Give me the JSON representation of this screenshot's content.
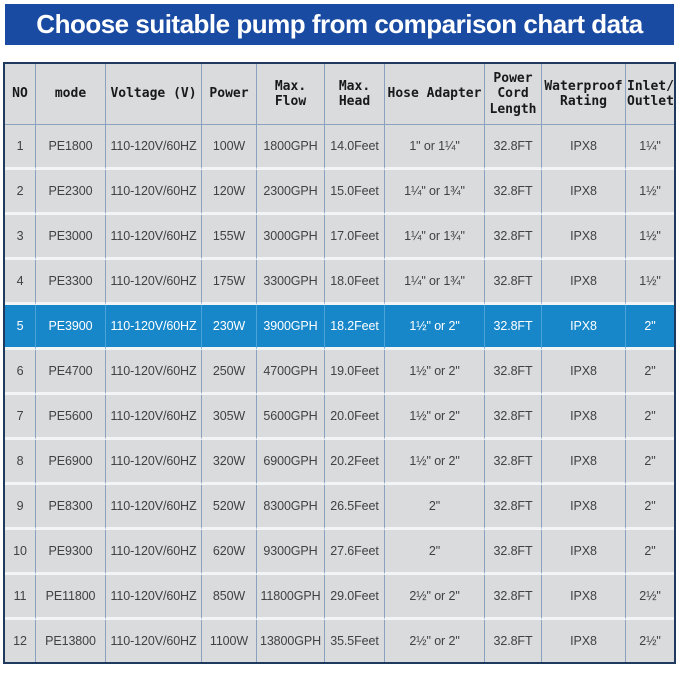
{
  "banner": {
    "title": "Choose suitable pump from comparison chart data"
  },
  "colors": {
    "banner_bg": "#1a4ba3",
    "highlight_row_bg": "#1787c9",
    "cell_bg": "#d9dbdc",
    "grid_line": "#8ba1c0",
    "outer_border": "#20395f",
    "banner_text": "#ffffff",
    "highlight_text": "#ffffff"
  },
  "chart_data": {
    "type": "table",
    "title": "Choose suitable pump from comparison chart data",
    "highlight_row_index": 4,
    "highlight_note": "Row 5 (PE3900) shown highlighted in blue",
    "columns": [
      {
        "key": "no",
        "label": "NO",
        "width": 31
      },
      {
        "key": "mode",
        "label": "mode",
        "width": 70
      },
      {
        "key": "voltage",
        "label": "Voltage (V)",
        "width": 96
      },
      {
        "key": "power",
        "label": "Power",
        "width": 55
      },
      {
        "key": "max-flow",
        "label": "Max.\nFlow",
        "width": 68
      },
      {
        "key": "max-head",
        "label": "Max.\nHead",
        "width": 60
      },
      {
        "key": "hose-adapter",
        "label": "Hose Adapter",
        "width": 100
      },
      {
        "key": "cord-length",
        "label": "Power\nCord\nLength",
        "width": 57
      },
      {
        "key": "waterproof",
        "label": "Waterproof\nRating",
        "width": 84
      },
      {
        "key": "inlet-outlet",
        "label": "Inlet/\nOutlet",
        "width": 48
      }
    ],
    "rows": [
      [
        "1",
        "PE1800",
        "110-120V/60HZ",
        "100W",
        "1800GPH",
        "14.0Feet",
        "1\" or 1¼\"",
        "32.8FT",
        "IPX8",
        "1¼\""
      ],
      [
        "2",
        "PE2300",
        "110-120V/60HZ",
        "120W",
        "2300GPH",
        "15.0Feet",
        "1¼\" or 1¾\"",
        "32.8FT",
        "IPX8",
        "1½\""
      ],
      [
        "3",
        "PE3000",
        "110-120V/60HZ",
        "155W",
        "3000GPH",
        "17.0Feet",
        "1¼\" or 1¾\"",
        "32.8FT",
        "IPX8",
        "1½\""
      ],
      [
        "4",
        "PE3300",
        "110-120V/60HZ",
        "175W",
        "3300GPH",
        "18.0Feet",
        "1¼\" or 1¾\"",
        "32.8FT",
        "IPX8",
        "1½\""
      ],
      [
        "5",
        "PE3900",
        "110-120V/60HZ",
        "230W",
        "3900GPH",
        "18.2Feet",
        "1½\" or 2\"",
        "32.8FT",
        "IPX8",
        "2\""
      ],
      [
        "6",
        "PE4700",
        "110-120V/60HZ",
        "250W",
        "4700GPH",
        "19.0Feet",
        "1½\" or 2\"",
        "32.8FT",
        "IPX8",
        "2\""
      ],
      [
        "7",
        "PE5600",
        "110-120V/60HZ",
        "305W",
        "5600GPH",
        "20.0Feet",
        "1½\" or 2\"",
        "32.8FT",
        "IPX8",
        "2\""
      ],
      [
        "8",
        "PE6900",
        "110-120V/60HZ",
        "320W",
        "6900GPH",
        "20.2Feet",
        "1½\" or 2\"",
        "32.8FT",
        "IPX8",
        "2\""
      ],
      [
        "9",
        "PE8300",
        "110-120V/60HZ",
        "520W",
        "8300GPH",
        "26.5Feet",
        "2\"",
        "32.8FT",
        "IPX8",
        "2\""
      ],
      [
        "10",
        "PE9300",
        "110-120V/60HZ",
        "620W",
        "9300GPH",
        "27.6Feet",
        "2\"",
        "32.8FT",
        "IPX8",
        "2\""
      ],
      [
        "11",
        "PE11800",
        "110-120V/60HZ",
        "850W",
        "11800GPH",
        "29.0Feet",
        "2½\" or 2\"",
        "32.8FT",
        "IPX8",
        "2½\""
      ],
      [
        "12",
        "PE13800",
        "110-120V/60HZ",
        "1100W",
        "13800GPH",
        "35.5Feet",
        "2½\" or 2\"",
        "32.8FT",
        "IPX8",
        "2½\""
      ]
    ]
  }
}
